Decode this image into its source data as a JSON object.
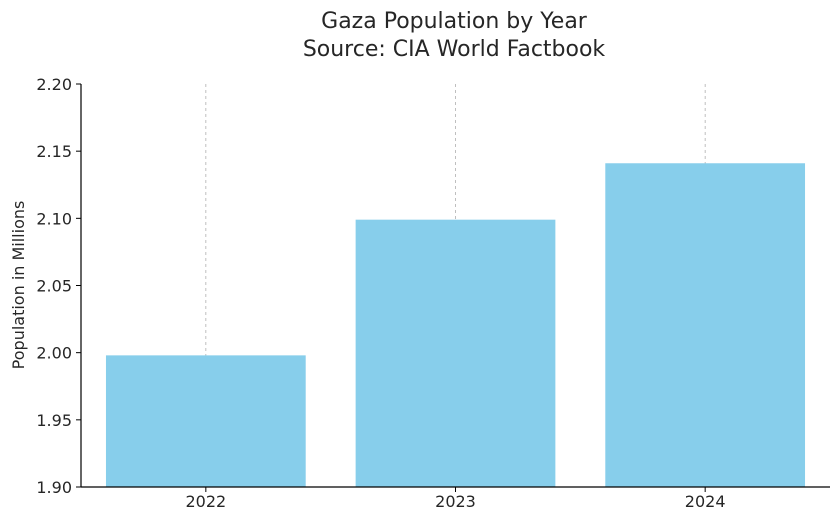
{
  "chart_data": {
    "type": "bar",
    "title": "Gaza Population by Year",
    "subtitle": "Source: CIA World Factbook",
    "xlabel": "",
    "ylabel": "Population in Millions",
    "categories": [
      "2022",
      "2023",
      "2024"
    ],
    "values": [
      1.998,
      2.099,
      2.141
    ],
    "ylim": [
      1.9,
      2.2
    ],
    "yticks": [
      1.9,
      1.95,
      2.0,
      2.05,
      2.1,
      2.15,
      2.2
    ],
    "ytick_labels": [
      "1.90",
      "1.95",
      "2.00",
      "2.05",
      "2.10",
      "2.15",
      "2.20"
    ],
    "grid": "vertical dashed",
    "bar_color": "#87ceeb",
    "grid_color": "#b0b0b0",
    "axis_color": "#000000"
  }
}
